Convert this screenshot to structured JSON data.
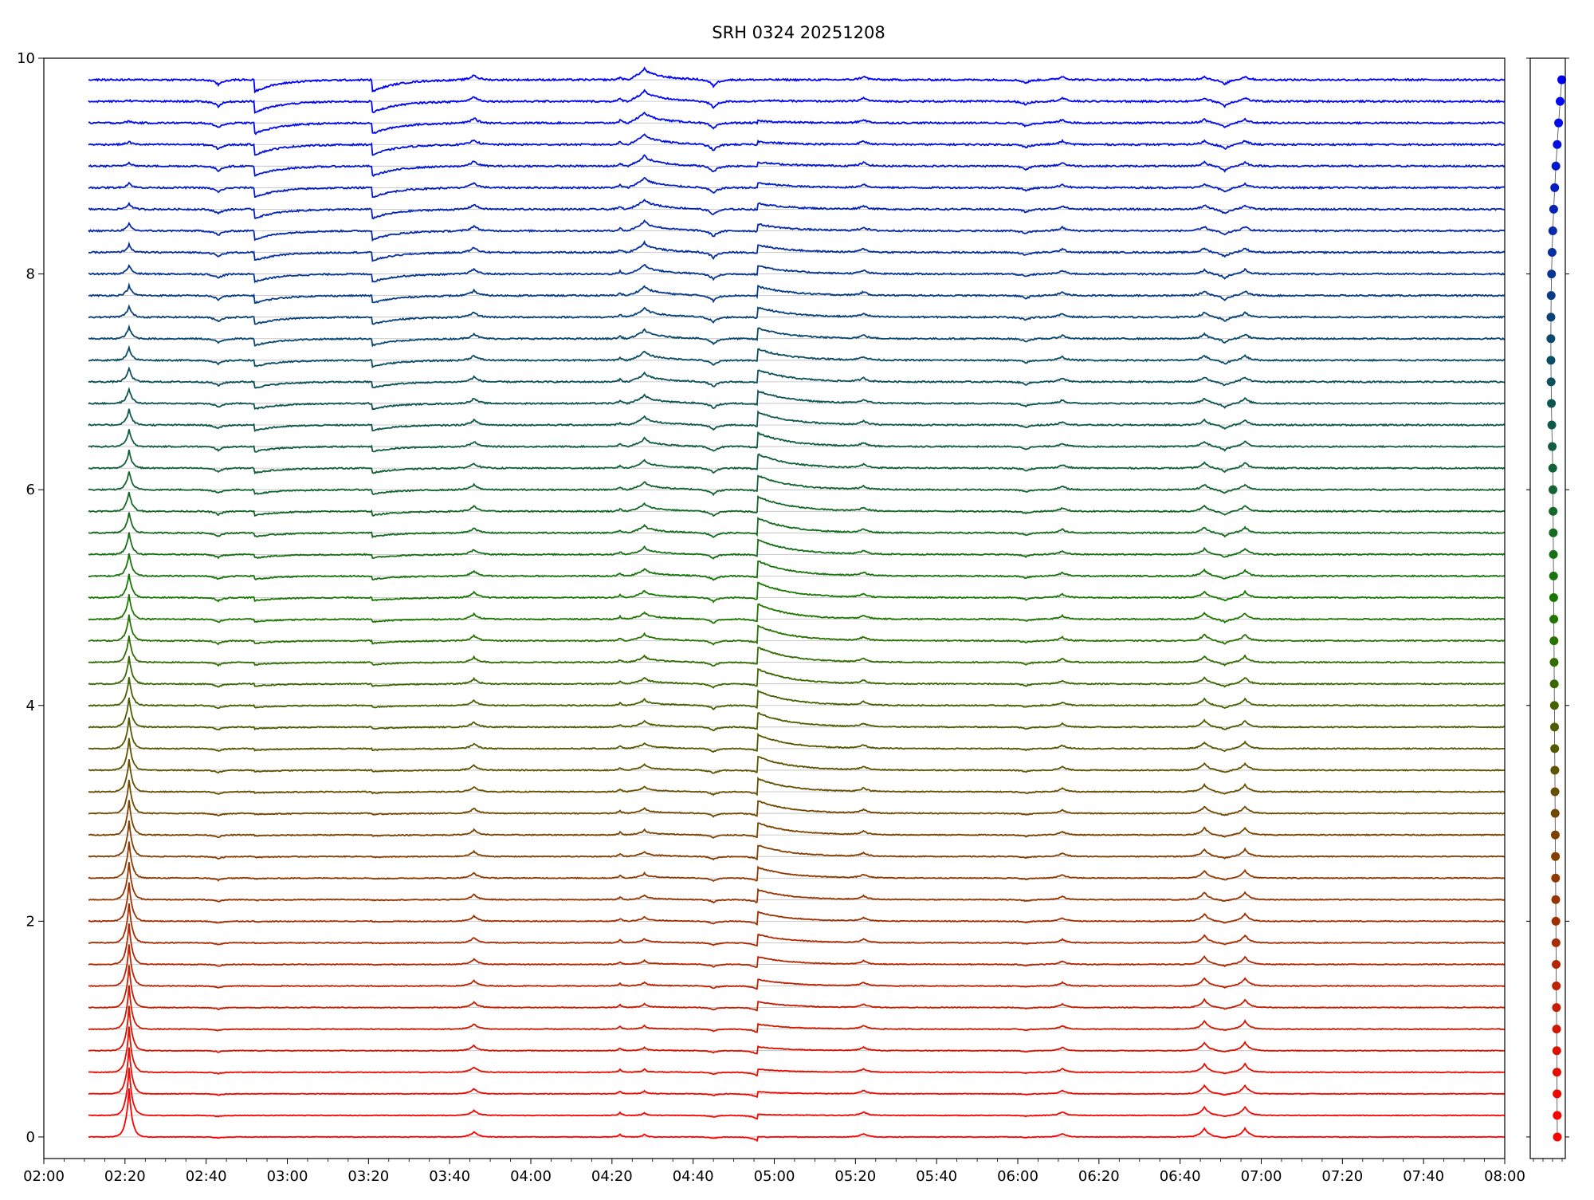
{
  "chart_data": {
    "type": "line",
    "title": "SRH 0324 20251208",
    "xlabel": "",
    "ylabel": "",
    "x_ticks": [
      "02:00",
      "02:20",
      "02:40",
      "03:00",
      "03:20",
      "03:40",
      "04:00",
      "04:20",
      "04:40",
      "05:00",
      "05:20",
      "05:40",
      "06:00",
      "06:20",
      "06:40",
      "07:00",
      "07:20",
      "07:40",
      "08:00"
    ],
    "xlim_minutes": [
      120,
      480
    ],
    "ylim": [
      -0.2,
      10
    ],
    "y_ticks": [
      "0",
      "2",
      "4",
      "6",
      "8",
      "10"
    ],
    "grid": "horizontal baselines at each trace offset",
    "n_series": 50,
    "series_offset_step": 0.2,
    "color_gradient": [
      "#ff0000",
      "#8b3a00",
      "#1a7a00",
      "#0a4a6a",
      "#0000ff"
    ],
    "events": [
      {
        "time": "02:21",
        "kind": "impulsive peak",
        "strength": 1.0
      },
      {
        "time": "02:43",
        "kind": "dip",
        "strength": 0.6
      },
      {
        "time": "02:52",
        "kind": "deep dip",
        "strength": 0.9
      },
      {
        "time": "03:21",
        "kind": "deep dip",
        "strength": 0.9
      },
      {
        "time": "03:46",
        "kind": "peak",
        "strength": 0.6
      },
      {
        "time": "04:22",
        "kind": "double peak",
        "strength": 0.5
      },
      {
        "time": "04:28",
        "kind": "gradual rise",
        "strength": 1.0
      },
      {
        "time": "04:45",
        "kind": "dip",
        "strength": 0.8
      },
      {
        "time": "04:56",
        "kind": "sharp rise",
        "strength": 1.0
      },
      {
        "time": "05:22",
        "kind": "bump",
        "strength": 0.4
      },
      {
        "time": "06:02",
        "kind": "dip",
        "strength": 0.4
      },
      {
        "time": "06:11",
        "kind": "peak",
        "strength": 0.4
      },
      {
        "time": "06:46",
        "kind": "peak",
        "strength": 1.0
      },
      {
        "time": "06:51",
        "kind": "dip",
        "strength": 0.6
      },
      {
        "time": "06:56",
        "kind": "peak",
        "strength": 1.0
      }
    ],
    "side_panel": {
      "type": "scatter",
      "description": "frequency markers per trace",
      "n_points": 50
    }
  }
}
